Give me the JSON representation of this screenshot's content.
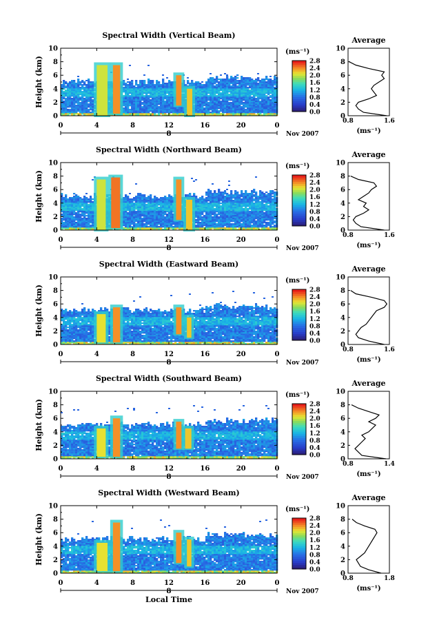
{
  "figure": {
    "xlabel": "Local Time",
    "colorbar_unit": "(ms⁻¹)",
    "colorbar_ticks": [
      "2.8",
      "2.4",
      "2.0",
      "1.6",
      "1.2",
      "0.8",
      "0.4",
      "0.0"
    ],
    "date_label": "Nov 2007",
    "day_label": "8",
    "x_ticks": [
      "0",
      "4",
      "8",
      "12",
      "16",
      "20",
      "0"
    ],
    "y_ticks": [
      "0",
      "2",
      "4",
      "6",
      "8",
      "10"
    ],
    "ylabel": "Height (km)",
    "profile_title": "Average",
    "profile_unit": "(ms⁻¹)",
    "colors": {
      "cmap_low": "#2b1f7a",
      "cmap_mid": "#19b3e6",
      "cmap_high": "#e8201a"
    }
  },
  "chart_data": [
    {
      "type": "heatmap",
      "title": "Spectral Width (Vertical Beam)",
      "xlabel": "",
      "ylabel": "Height (km)",
      "xlim": [
        0,
        24
      ],
      "ylim": [
        0,
        10
      ],
      "clim": [
        0.0,
        3.0
      ],
      "cells": [
        {
          "x0": 4.0,
          "x1": 5.2,
          "y0": 0.0,
          "y1": 7.5,
          "v": 2.2
        },
        {
          "x0": 5.8,
          "x1": 6.6,
          "y0": 0.3,
          "y1": 7.5,
          "v": 2.6
        },
        {
          "x0": 12.8,
          "x1": 13.4,
          "y0": 1.5,
          "y1": 6.0,
          "v": 2.6
        },
        {
          "x0": 14.0,
          "x1": 14.6,
          "y0": 0.0,
          "y1": 4.0,
          "v": 2.4
        }
      ],
      "profile": {
        "title": "Average",
        "xlim": [
          0.8,
          1.6
        ],
        "x_ticks": [
          "0.8",
          "1.6"
        ],
        "heights": [
          0,
          0.5,
          1,
          1.5,
          2,
          2.5,
          3,
          3.5,
          4,
          4.5,
          5,
          5.5,
          6,
          6.5,
          7,
          7.5,
          8
        ],
        "values": [
          1.55,
          1.1,
          1.0,
          0.95,
          1.0,
          1.2,
          1.35,
          1.3,
          1.25,
          1.3,
          1.4,
          1.5,
          1.45,
          1.5,
          1.2,
          0.95,
          0.82
        ]
      }
    },
    {
      "type": "heatmap",
      "title": "Spectral Width (Northward Beam)",
      "xlabel": "",
      "ylabel": "Height (km)",
      "xlim": [
        0,
        24
      ],
      "ylim": [
        0,
        10
      ],
      "clim": [
        0.0,
        3.0
      ],
      "cells": [
        {
          "x0": 4.0,
          "x1": 5.0,
          "y0": 0.0,
          "y1": 7.5,
          "v": 2.2
        },
        {
          "x0": 5.6,
          "x1": 6.6,
          "y0": 0.3,
          "y1": 7.8,
          "v": 2.7
        },
        {
          "x0": 12.8,
          "x1": 13.4,
          "y0": 1.5,
          "y1": 7.5,
          "v": 2.6
        },
        {
          "x0": 13.9,
          "x1": 14.6,
          "y0": 0.0,
          "y1": 4.5,
          "v": 2.4
        }
      ],
      "profile": {
        "title": "Average",
        "xlim": [
          0.8,
          1.6
        ],
        "x_ticks": [
          "0.8",
          "1.6"
        ],
        "heights": [
          0,
          0.5,
          1,
          1.5,
          2,
          2.5,
          3,
          3.5,
          4,
          4.5,
          5,
          5.5,
          6,
          6.5,
          7,
          7.5,
          8
        ],
        "values": [
          1.5,
          1.05,
          0.95,
          0.9,
          0.95,
          1.1,
          1.2,
          1.1,
          1.15,
          1.0,
          1.1,
          1.2,
          1.25,
          1.35,
          1.3,
          1.0,
          0.85
        ]
      }
    },
    {
      "type": "heatmap",
      "title": "Spectral Width (Eastward Beam)",
      "xlabel": "",
      "ylabel": "Height (km)",
      "xlim": [
        0,
        24
      ],
      "ylim": [
        0,
        10
      ],
      "clim": [
        0.0,
        3.0
      ],
      "cells": [
        {
          "x0": 4.0,
          "x1": 5.0,
          "y0": 0.3,
          "y1": 4.5,
          "v": 2.3
        },
        {
          "x0": 5.8,
          "x1": 6.6,
          "y0": 0.3,
          "y1": 5.5,
          "v": 2.6
        },
        {
          "x0": 12.8,
          "x1": 13.4,
          "y0": 1.5,
          "y1": 5.5,
          "v": 2.6
        },
        {
          "x0": 14.0,
          "x1": 14.5,
          "y0": 1.0,
          "y1": 4.0,
          "v": 2.4
        }
      ],
      "profile": {
        "title": "Average",
        "xlim": [
          0.8,
          1.6
        ],
        "x_ticks": [
          "0.8",
          "1.6"
        ],
        "heights": [
          0,
          0.5,
          1,
          1.5,
          2,
          2.5,
          3,
          3.5,
          4,
          4.5,
          5,
          5.5,
          6,
          6.5,
          7,
          7.5,
          8
        ],
        "values": [
          1.5,
          1.2,
          1.0,
          0.95,
          1.0,
          1.05,
          1.15,
          1.2,
          1.25,
          1.3,
          1.35,
          1.5,
          1.55,
          1.5,
          1.25,
          0.95,
          0.85
        ]
      }
    },
    {
      "type": "heatmap",
      "title": "Spectral Width (Southward Beam)",
      "xlabel": "",
      "ylabel": "Height (km)",
      "xlim": [
        0,
        24
      ],
      "ylim": [
        0,
        10
      ],
      "clim": [
        0.0,
        3.0
      ],
      "cells": [
        {
          "x0": 4.0,
          "x1": 5.0,
          "y0": 0.3,
          "y1": 4.5,
          "v": 2.3
        },
        {
          "x0": 5.8,
          "x1": 6.6,
          "y0": 0.3,
          "y1": 6.0,
          "v": 2.6
        },
        {
          "x0": 12.8,
          "x1": 13.4,
          "y0": 1.5,
          "y1": 5.5,
          "v": 2.6
        },
        {
          "x0": 13.8,
          "x1": 14.5,
          "y0": 1.5,
          "y1": 4.5,
          "v": 2.4
        }
      ],
      "profile": {
        "title": "Average",
        "xlim": [
          0.8,
          1.4
        ],
        "x_ticks": [
          "0.8",
          "1.4"
        ],
        "heights": [
          0,
          0.5,
          1,
          1.5,
          2,
          2.5,
          3,
          3.5,
          4,
          4.5,
          5,
          5.5,
          6,
          6.5,
          7,
          7.5,
          8
        ],
        "values": [
          1.35,
          1.0,
          0.95,
          0.9,
          0.95,
          1.0,
          1.05,
          1.0,
          1.1,
          1.15,
          1.2,
          1.1,
          1.2,
          1.25,
          1.1,
          0.95,
          0.85
        ]
      }
    },
    {
      "type": "heatmap",
      "title": "Spectral Width (Westward Beam)",
      "xlabel": "Local Time",
      "ylabel": "Height (km)",
      "xlim": [
        0,
        24
      ],
      "ylim": [
        0,
        10
      ],
      "clim": [
        0.0,
        3.0
      ],
      "cells": [
        {
          "x0": 4.0,
          "x1": 5.2,
          "y0": 0.3,
          "y1": 4.5,
          "v": 2.3
        },
        {
          "x0": 5.8,
          "x1": 6.6,
          "y0": 0.3,
          "y1": 7.5,
          "v": 2.6
        },
        {
          "x0": 12.8,
          "x1": 13.4,
          "y0": 1.5,
          "y1": 6.0,
          "v": 2.6
        },
        {
          "x0": 14.0,
          "x1": 14.5,
          "y0": 1.0,
          "y1": 5.0,
          "v": 2.4
        }
      ],
      "profile": {
        "title": "Average",
        "xlim": [
          0.8,
          1.8
        ],
        "x_ticks": [
          "0.8",
          "1.8"
        ],
        "heights": [
          0,
          0.5,
          1,
          1.5,
          2,
          2.5,
          3,
          3.5,
          4,
          4.5,
          5,
          5.5,
          6,
          6.5,
          7,
          7.5,
          8
        ],
        "values": [
          1.6,
          1.3,
          1.1,
          1.05,
          1.0,
          1.1,
          1.2,
          1.25,
          1.3,
          1.35,
          1.4,
          1.45,
          1.5,
          1.45,
          1.2,
          1.0,
          0.9
        ]
      }
    }
  ]
}
